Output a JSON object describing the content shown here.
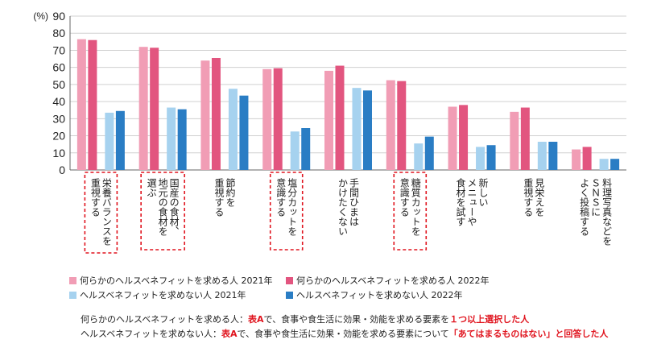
{
  "chart_data": {
    "type": "bar",
    "y_unit": "(%)",
    "ylim": [
      0,
      90
    ],
    "yticks": [
      0,
      10,
      20,
      30,
      40,
      50,
      60,
      70,
      80,
      90
    ],
    "grid": true,
    "categories": [
      [
        "栄養バランスを",
        "重視する"
      ],
      [
        "国産の食材、",
        "地元の食材を",
        "選ぶ"
      ],
      [
        "節約を",
        "重視する"
      ],
      [
        "塩分カットを",
        "意識する"
      ],
      [
        "手間ひまは",
        "かけたくない"
      ],
      [
        "糖質カットを",
        "意識する"
      ],
      [
        "新しい",
        "メニューや",
        "食材を試す"
      ],
      [
        "見栄えを",
        "重視する"
      ],
      [
        "料理写真などを",
        "ＳＮＳに",
        "よく投稿する"
      ]
    ],
    "highlighted_categories": [
      0,
      1,
      3,
      5
    ],
    "series": [
      {
        "name": "何らかのヘルスベネフィットを求める人 2021年",
        "color": "#f19db5",
        "values": [
          76.5,
          72,
          64,
          59,
          58,
          52.5,
          37,
          34,
          12
        ]
      },
      {
        "name": "何らかのヘルスベネフィットを求める人 2022年",
        "color": "#e2557f",
        "values": [
          76,
          71.5,
          65.5,
          59.5,
          61,
          52,
          38,
          36.5,
          13.5
        ]
      },
      {
        "name": "ヘルスベネフィットを求めない人 2021年",
        "color": "#a6d2ef",
        "values": [
          33.5,
          36.5,
          47.5,
          22.5,
          48,
          15.5,
          13.5,
          16.5,
          6.5
        ]
      },
      {
        "name": "ヘルスベネフィットを求めない人 2022年",
        "color": "#2a7dc4",
        "values": [
          34.5,
          35.5,
          43.5,
          24.5,
          46.5,
          19.5,
          14.5,
          16.5,
          6.5
        ]
      }
    ]
  },
  "notes": [
    {
      "parts": [
        {
          "text": "何らかのヘルスベネフィットを求める人：",
          "hl": false
        },
        {
          "text": "表A",
          "hl": true
        },
        {
          "text": "で、食事や食生活に効果・効能を求める要素を",
          "hl": false
        },
        {
          "text": "１つ以上選択した人",
          "hl": true
        }
      ]
    },
    {
      "parts": [
        {
          "text": "ヘルスベネフィットを求めない人：",
          "hl": false
        },
        {
          "text": "表A",
          "hl": true
        },
        {
          "text": "で、食事や食生活に効果・効能を求める要素について",
          "hl": false
        },
        {
          "text": "「あてはまるものはない」と回答した人",
          "hl": true
        }
      ]
    }
  ]
}
